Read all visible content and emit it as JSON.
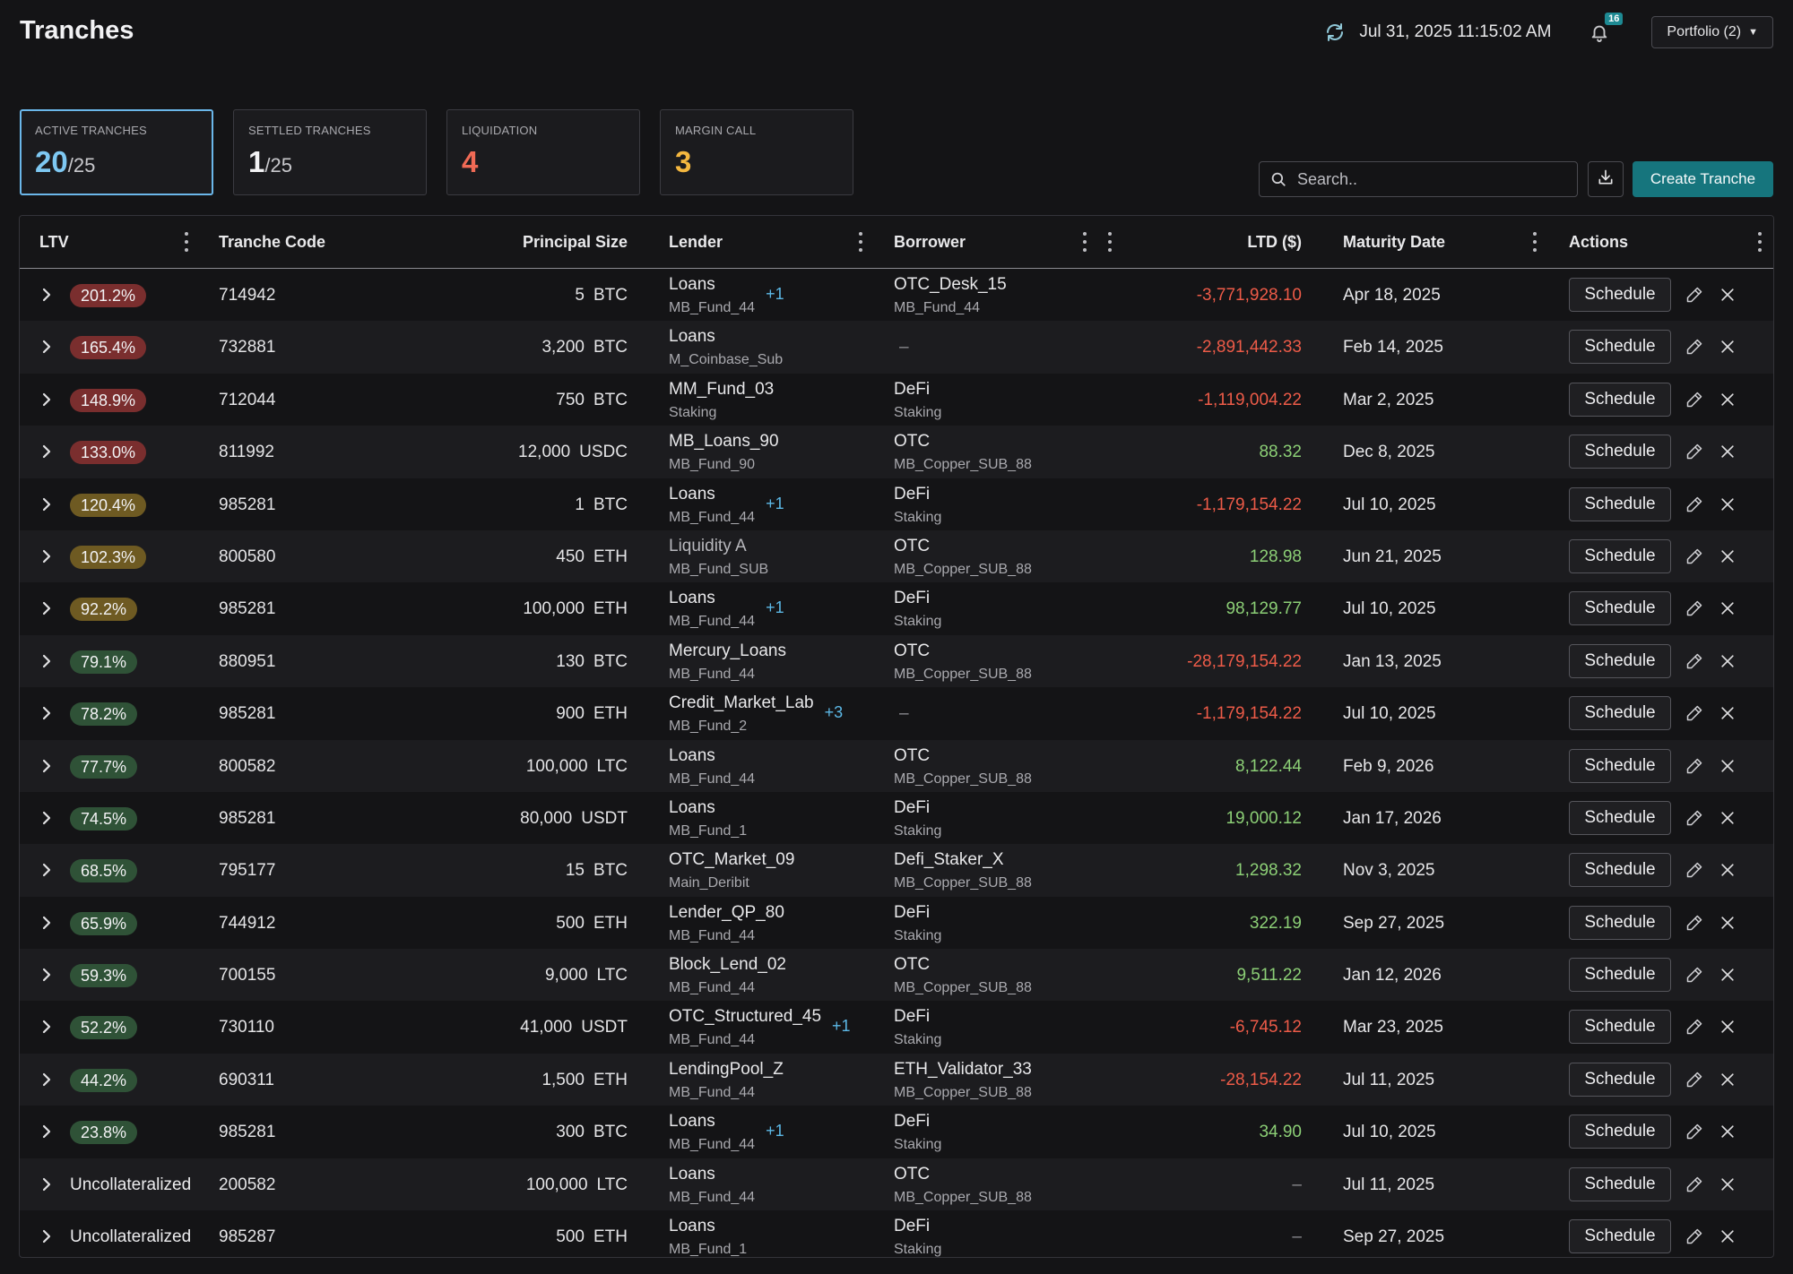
{
  "page": {
    "title": "Tranches",
    "datetime": "Jul 31, 2025 11:15:02 AM",
    "notification_count": "16",
    "portfolio_label": "Portfolio (2)"
  },
  "summary_cards": [
    {
      "label": "ACTIVE TRANCHES",
      "value": "20",
      "denominator": "/25",
      "color": "#7ec8f2",
      "active": true
    },
    {
      "label": "SETTLED TRANCHES",
      "value": "1",
      "denominator": "/25",
      "color": "#f2f2f4",
      "active": false
    },
    {
      "label": "LIQUIDATION",
      "value": "4",
      "denominator": "",
      "color": "#f06a55",
      "active": false
    },
    {
      "label": "MARGIN CALL",
      "value": "3",
      "denominator": "",
      "color": "#f4b73f",
      "active": false
    }
  ],
  "toolbar": {
    "search_placeholder": "Search..",
    "create_label": "Create Tranche"
  },
  "table": {
    "columns": [
      "LTV",
      "Tranche Code",
      "Principal Size",
      "Lender",
      "Borrower",
      "LTD ($)",
      "Maturity Date",
      "Actions"
    ],
    "schedule_label": "Schedule",
    "rows": [
      {
        "ltv": "201.2%",
        "ltv_level": "red",
        "code": "714942",
        "principal": "5",
        "unit": "BTC",
        "lender": "Loans",
        "lender_sub": "MB_Fund_44",
        "lender_extra": "+1",
        "borrower": "OTC_Desk_15",
        "borrower_sub": "MB_Fund_44",
        "ltd": "-3,771,928.10",
        "ltd_sign": "neg",
        "maturity": "Apr 18, 2025"
      },
      {
        "ltv": "165.4%",
        "ltv_level": "red",
        "code": "732881",
        "principal": "3,200",
        "unit": "BTC",
        "lender": "Loans",
        "lender_sub": "M_Coinbase_Sub",
        "lender_extra": "",
        "borrower": "–",
        "borrower_sub": "",
        "ltd": "-2,891,442.33",
        "ltd_sign": "neg",
        "maturity": "Feb 14, 2025"
      },
      {
        "ltv": "148.9%",
        "ltv_level": "red",
        "code": "712044",
        "principal": "750",
        "unit": "BTC",
        "lender": "MM_Fund_03",
        "lender_sub": "Staking",
        "lender_extra": "",
        "borrower": "DeFi",
        "borrower_sub": "Staking",
        "ltd": "-1,119,004.22",
        "ltd_sign": "neg",
        "maturity": "Mar 2, 2025"
      },
      {
        "ltv": "133.0%",
        "ltv_level": "red",
        "code": "811992",
        "principal": "12,000",
        "unit": "USDC",
        "lender": "MB_Loans_90",
        "lender_sub": "MB_Fund_90",
        "lender_extra": "",
        "borrower": "OTC",
        "borrower_sub": "MB_Copper_SUB_88",
        "ltd": "88.32",
        "ltd_sign": "pos",
        "maturity": "Dec 8, 2025"
      },
      {
        "ltv": "120.4%",
        "ltv_level": "olive",
        "code": "985281",
        "principal": "1",
        "unit": "BTC",
        "lender": "Loans",
        "lender_sub": "MB_Fund_44",
        "lender_extra": "+1",
        "borrower": "DeFi",
        "borrower_sub": "Staking",
        "ltd": "-1,179,154.22",
        "ltd_sign": "neg",
        "maturity": "Jul 10, 2025"
      },
      {
        "ltv": "102.3%",
        "ltv_level": "olive",
        "code": "800580",
        "principal": "450",
        "unit": "ETH",
        "lender": "Liquidity A",
        "lender_sub": "MB_Fund_SUB",
        "lender_extra": "",
        "lender_dim": true,
        "borrower": "OTC",
        "borrower_sub": "MB_Copper_SUB_88",
        "ltd": "128.98",
        "ltd_sign": "pos",
        "maturity": "Jun 21, 2025"
      },
      {
        "ltv": "92.2%",
        "ltv_level": "olive",
        "code": "985281",
        "principal": "100,000",
        "unit": "ETH",
        "lender": "Loans",
        "lender_sub": "MB_Fund_44",
        "lender_extra": "+1",
        "borrower": "DeFi",
        "borrower_sub": "Staking",
        "ltd": "98,129.77",
        "ltd_sign": "pos",
        "maturity": "Jul 10, 2025"
      },
      {
        "ltv": "79.1%",
        "ltv_level": "green",
        "code": "880951",
        "principal": "130",
        "unit": "BTC",
        "lender": "Mercury_Loans",
        "lender_sub": "MB_Fund_44",
        "lender_extra": "",
        "borrower": "OTC",
        "borrower_sub": "MB_Copper_SUB_88",
        "ltd": "-28,179,154.22",
        "ltd_sign": "neg",
        "maturity": "Jan 13, 2025"
      },
      {
        "ltv": "78.2%",
        "ltv_level": "green",
        "code": "985281",
        "principal": "900",
        "unit": "ETH",
        "lender": "Credit_Market_Lab",
        "lender_sub": "MB_Fund_2",
        "lender_extra": "+3",
        "borrower": "–",
        "borrower_sub": "",
        "ltd": "-1,179,154.22",
        "ltd_sign": "neg",
        "maturity": "Jul 10, 2025"
      },
      {
        "ltv": "77.7%",
        "ltv_level": "green",
        "code": "800582",
        "principal": "100,000",
        "unit": "LTC",
        "lender": "Loans",
        "lender_sub": "MB_Fund_44",
        "lender_extra": "",
        "borrower": "OTC",
        "borrower_sub": "MB_Copper_SUB_88",
        "ltd": "8,122.44",
        "ltd_sign": "pos",
        "maturity": "Feb 9, 2026"
      },
      {
        "ltv": "74.5%",
        "ltv_level": "green",
        "code": "985281",
        "principal": "80,000",
        "unit": "USDT",
        "lender": "Loans",
        "lender_sub": "MB_Fund_1",
        "lender_extra": "",
        "borrower": "DeFi",
        "borrower_sub": "Staking",
        "ltd": "19,000.12",
        "ltd_sign": "pos",
        "maturity": "Jan 17, 2026"
      },
      {
        "ltv": "68.5%",
        "ltv_level": "green",
        "code": "795177",
        "principal": "15",
        "unit": "BTC",
        "lender": "OTC_Market_09",
        "lender_sub": "Main_Deribit",
        "lender_extra": "",
        "borrower": "Defi_Staker_X",
        "borrower_sub": "MB_Copper_SUB_88",
        "ltd": "1,298.32",
        "ltd_sign": "pos",
        "maturity": "Nov 3, 2025"
      },
      {
        "ltv": "65.9%",
        "ltv_level": "green",
        "code": "744912",
        "principal": "500",
        "unit": "ETH",
        "lender": "Lender_QP_80",
        "lender_sub": "MB_Fund_44",
        "lender_extra": "",
        "borrower": "DeFi",
        "borrower_sub": "Staking",
        "ltd": "322.19",
        "ltd_sign": "pos",
        "maturity": "Sep 27, 2025"
      },
      {
        "ltv": "59.3%",
        "ltv_level": "green",
        "code": "700155",
        "principal": "9,000",
        "unit": "LTC",
        "lender": "Block_Lend_02",
        "lender_sub": "MB_Fund_44",
        "lender_extra": "",
        "borrower": "OTC",
        "borrower_sub": "MB_Copper_SUB_88",
        "ltd": "9,511.22",
        "ltd_sign": "pos",
        "maturity": "Jan 12, 2026"
      },
      {
        "ltv": "52.2%",
        "ltv_level": "green",
        "code": "730110",
        "principal": "41,000",
        "unit": "USDT",
        "lender": "OTC_Structured_45",
        "lender_sub": "MB_Fund_44",
        "lender_extra": "+1",
        "borrower": "DeFi",
        "borrower_sub": "Staking",
        "ltd": "-6,745.12",
        "ltd_sign": "neg",
        "maturity": "Mar 23, 2025"
      },
      {
        "ltv": "44.2%",
        "ltv_level": "green",
        "code": "690311",
        "principal": "1,500",
        "unit": "ETH",
        "lender": "LendingPool_Z",
        "lender_sub": "MB_Fund_44",
        "lender_extra": "",
        "borrower": "ETH_Validator_33",
        "borrower_sub": "MB_Copper_SUB_88",
        "ltd": "-28,154.22",
        "ltd_sign": "neg",
        "maturity": "Jul 11, 2025"
      },
      {
        "ltv": "23.8%",
        "ltv_level": "green",
        "code": "985281",
        "principal": "300",
        "unit": "BTC",
        "lender": "Loans",
        "lender_sub": "MB_Fund_44",
        "lender_extra": "+1",
        "borrower": "DeFi",
        "borrower_sub": "Staking",
        "ltd": "34.90",
        "ltd_sign": "pos",
        "maturity": "Jul 10, 2025"
      },
      {
        "ltv": "Uncollateralized",
        "ltv_level": "none",
        "code": "200582",
        "principal": "100,000",
        "unit": "LTC",
        "lender": "Loans",
        "lender_sub": "MB_Fund_44",
        "lender_extra": "",
        "borrower": "OTC",
        "borrower_sub": "MB_Copper_SUB_88",
        "ltd": "–",
        "ltd_sign": "none",
        "maturity": "Jul 11, 2025"
      },
      {
        "ltv": "Uncollateralized",
        "ltv_level": "none",
        "code": "985287",
        "principal": "500",
        "unit": "ETH",
        "lender": "Loans",
        "lender_sub": "MB_Fund_1",
        "lender_extra": "",
        "borrower": "DeFi",
        "borrower_sub": "Staking",
        "ltd": "–",
        "ltd_sign": "none",
        "maturity": "Sep 27, 2025"
      }
    ]
  },
  "icons": {
    "refresh": "refresh-icon",
    "notifications": "bell-icon",
    "search": "search-icon",
    "download": "download-icon",
    "expand_row": "chevron-right-icon",
    "edit": "pencil-icon",
    "remove": "close-icon",
    "column_menu": "kebab-icon"
  },
  "colors": {
    "background": "#141416",
    "accent": "#16757d",
    "positive": "#8ccf76",
    "negative": "#ed5b48",
    "ltv_red": "#7a2e2e",
    "ltv_olive": "#6e5a22",
    "ltv_green": "#2f5237"
  }
}
